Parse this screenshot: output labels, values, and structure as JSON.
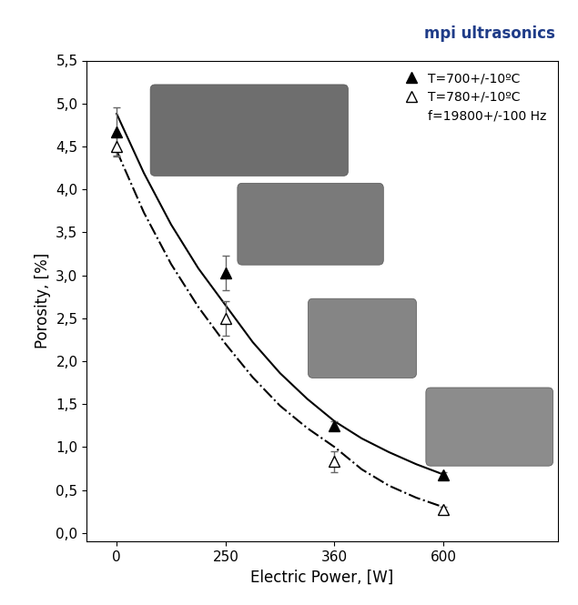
{
  "chart_data": {
    "type": "scatter",
    "x_label": "Electric Power, [W]",
    "y_label": "Porosity, [%]",
    "logo": "mpi ultrasonics",
    "note": "f=19800+/-100 Hz",
    "categories": [
      "0",
      null,
      null,
      null,
      "250",
      null,
      null,
      null,
      "360",
      null,
      null,
      null,
      "600"
    ],
    "ylim": [
      -0.1,
      5.5
    ],
    "yticks": [
      {
        "value": 0,
        "label": "0,0"
      },
      {
        "value": 0.5,
        "label": "0,5"
      },
      {
        "value": 1,
        "label": "1,0"
      },
      {
        "value": 1.5,
        "label": "1,5"
      },
      {
        "value": 2,
        "label": "2,0"
      },
      {
        "value": 2.5,
        "label": "2,5"
      },
      {
        "value": 3,
        "label": "3,0"
      },
      {
        "value": 3.5,
        "label": "3,5"
      },
      {
        "value": 4,
        "label": "4,0"
      },
      {
        "value": 4.5,
        "label": "4,5"
      },
      {
        "value": 5,
        "label": "5,0"
      },
      {
        "value": 5.5,
        "label": "5,5"
      }
    ],
    "grid": false,
    "legend": "upper right",
    "series": [
      {
        "name": "T=700+/-10ºC",
        "type": "scatter",
        "marker": "triangle",
        "color": "#000000",
        "values": [
          4.67,
          null,
          null,
          null,
          3.03,
          null,
          null,
          null,
          1.25,
          null,
          null,
          null,
          0.68
        ],
        "errors": [
          0.28,
          null,
          null,
          null,
          0.2,
          null,
          null,
          null,
          0.05,
          null,
          null,
          null,
          0.03
        ]
      },
      {
        "name": "T=780+/-10ºC",
        "type": "scatter",
        "marker": "triangle-open",
        "color": "#000000",
        "values": [
          4.5,
          null,
          null,
          null,
          2.5,
          null,
          null,
          null,
          0.83,
          null,
          null,
          null,
          0.27
        ],
        "errors": [
          0.12,
          null,
          null,
          null,
          0.2,
          null,
          null,
          null,
          0.12,
          null,
          null,
          null,
          0.03
        ]
      },
      {
        "type": "line",
        "line_style": "solid",
        "color": "#000000",
        "values": [
          4.88,
          4.19,
          3.59,
          3.08,
          2.65,
          2.22,
          1.86,
          1.56,
          1.3,
          1.1,
          0.94,
          0.8,
          0.68
        ]
      },
      {
        "type": "line",
        "line_style": "dashdot",
        "color": "#000000",
        "values": [
          4.45,
          3.73,
          3.13,
          2.63,
          2.2,
          1.81,
          1.48,
          1.22,
          1.0,
          0.74,
          0.55,
          0.41,
          0.3
        ]
      }
    ]
  }
}
